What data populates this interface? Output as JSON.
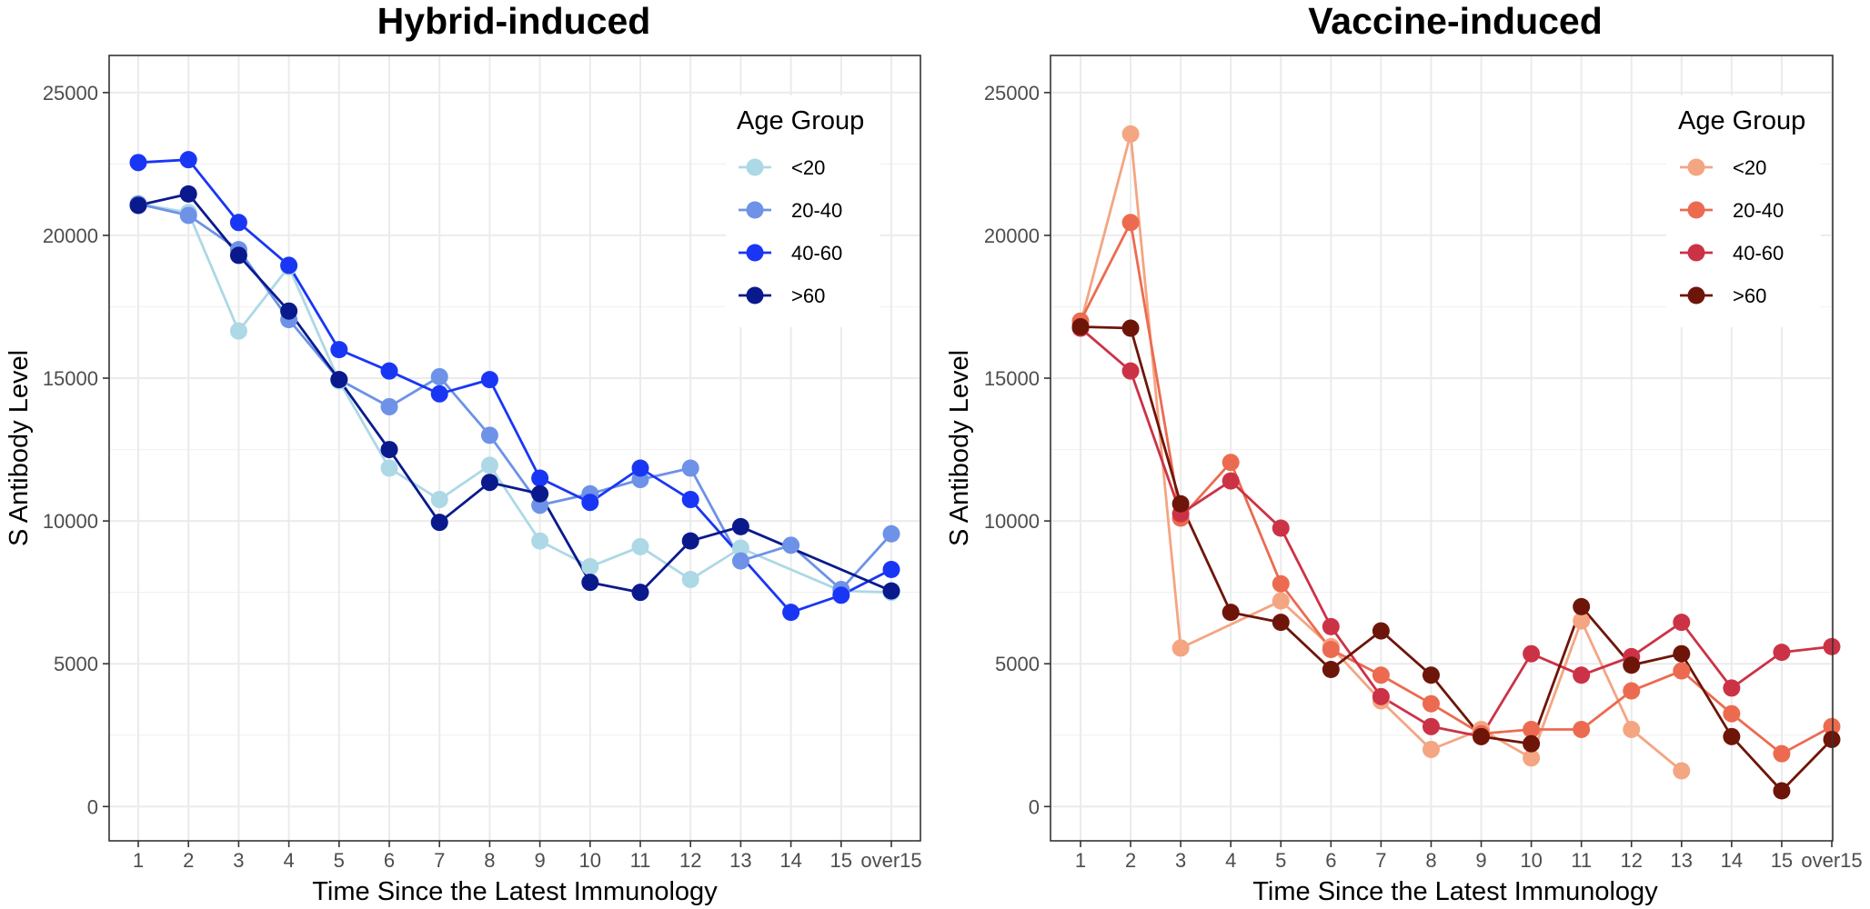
{
  "chart_data": [
    {
      "type": "line",
      "title": "Hybrid-induced",
      "xlabel": "Time Since the Latest Immunology",
      "ylabel": "S Antibody Level",
      "categories": [
        "1",
        "2",
        "3",
        "4",
        "5",
        "6",
        "7",
        "8",
        "9",
        "10",
        "11",
        "12",
        "13",
        "14",
        "15",
        "over15"
      ],
      "yticks": [
        0,
        5000,
        10000,
        15000,
        20000,
        25000
      ],
      "ylim": [
        -1200,
        26300
      ],
      "grid": true,
      "legend": {
        "title": "Age Group",
        "position": "top-right"
      },
      "series": [
        {
          "name": "<20",
          "color": "#add8e6",
          "values": [
            21100,
            20800,
            16650,
            18900,
            14900,
            11850,
            10750,
            11950,
            9300,
            8400,
            9100,
            7950,
            9050,
            null,
            7550,
            7500
          ]
        },
        {
          "name": "20-40",
          "color": "#6d92e7",
          "values": [
            21100,
            20700,
            19500,
            17050,
            14950,
            14000,
            15050,
            13000,
            10550,
            10950,
            11450,
            11850,
            8600,
            9150,
            7600,
            9550
          ]
        },
        {
          "name": "40-60",
          "color": "#1a36f5",
          "values": [
            22550,
            22650,
            20450,
            18950,
            16000,
            15250,
            14450,
            14950,
            11500,
            10650,
            11850,
            10750,
            null,
            6800,
            7400,
            8300
          ]
        },
        {
          "name": ">60",
          "color": "#0a1a8c",
          "values": [
            21050,
            21450,
            19300,
            17350,
            14950,
            12500,
            9950,
            11350,
            10950,
            7850,
            7500,
            9300,
            9800,
            null,
            null,
            7550
          ]
        }
      ]
    },
    {
      "type": "line",
      "title": "Vaccine-induced",
      "xlabel": "Time Since the Latest Immunology",
      "ylabel": "S Antibody Level",
      "categories": [
        "1",
        "2",
        "3",
        "4",
        "5",
        "6",
        "7",
        "8",
        "9",
        "10",
        "11",
        "12",
        "13",
        "14",
        "15",
        "over15"
      ],
      "yticks": [
        0,
        5000,
        10000,
        15000,
        20000,
        25000
      ],
      "ylim": [
        -1200,
        26300
      ],
      "grid": true,
      "legend": {
        "title": "Age Group",
        "position": "top-right"
      },
      "series": [
        {
          "name": "<20",
          "color": "#f4a582",
          "values": [
            16900,
            23550,
            5550,
            null,
            7200,
            5600,
            3700,
            2000,
            2700,
            1700,
            6500,
            2700,
            1250,
            null,
            null,
            null
          ]
        },
        {
          "name": "20-40",
          "color": "#ec6b50",
          "values": [
            17000,
            20450,
            10100,
            12050,
            7800,
            5500,
            4600,
            3600,
            2550,
            2700,
            2700,
            4050,
            4750,
            3250,
            1850,
            2800
          ]
        },
        {
          "name": "40-60",
          "color": "#cc3246",
          "values": [
            16750,
            15250,
            10250,
            11400,
            9750,
            6300,
            3850,
            2800,
            2450,
            5350,
            4600,
            5250,
            6450,
            4150,
            5400,
            5600
          ]
        },
        {
          "name": ">60",
          "color": "#6e1509",
          "values": [
            16800,
            16750,
            10600,
            6800,
            6450,
            4800,
            6150,
            4600,
            2450,
            2200,
            7000,
            4950,
            5350,
            2450,
            550,
            2350
          ]
        }
      ]
    }
  ]
}
